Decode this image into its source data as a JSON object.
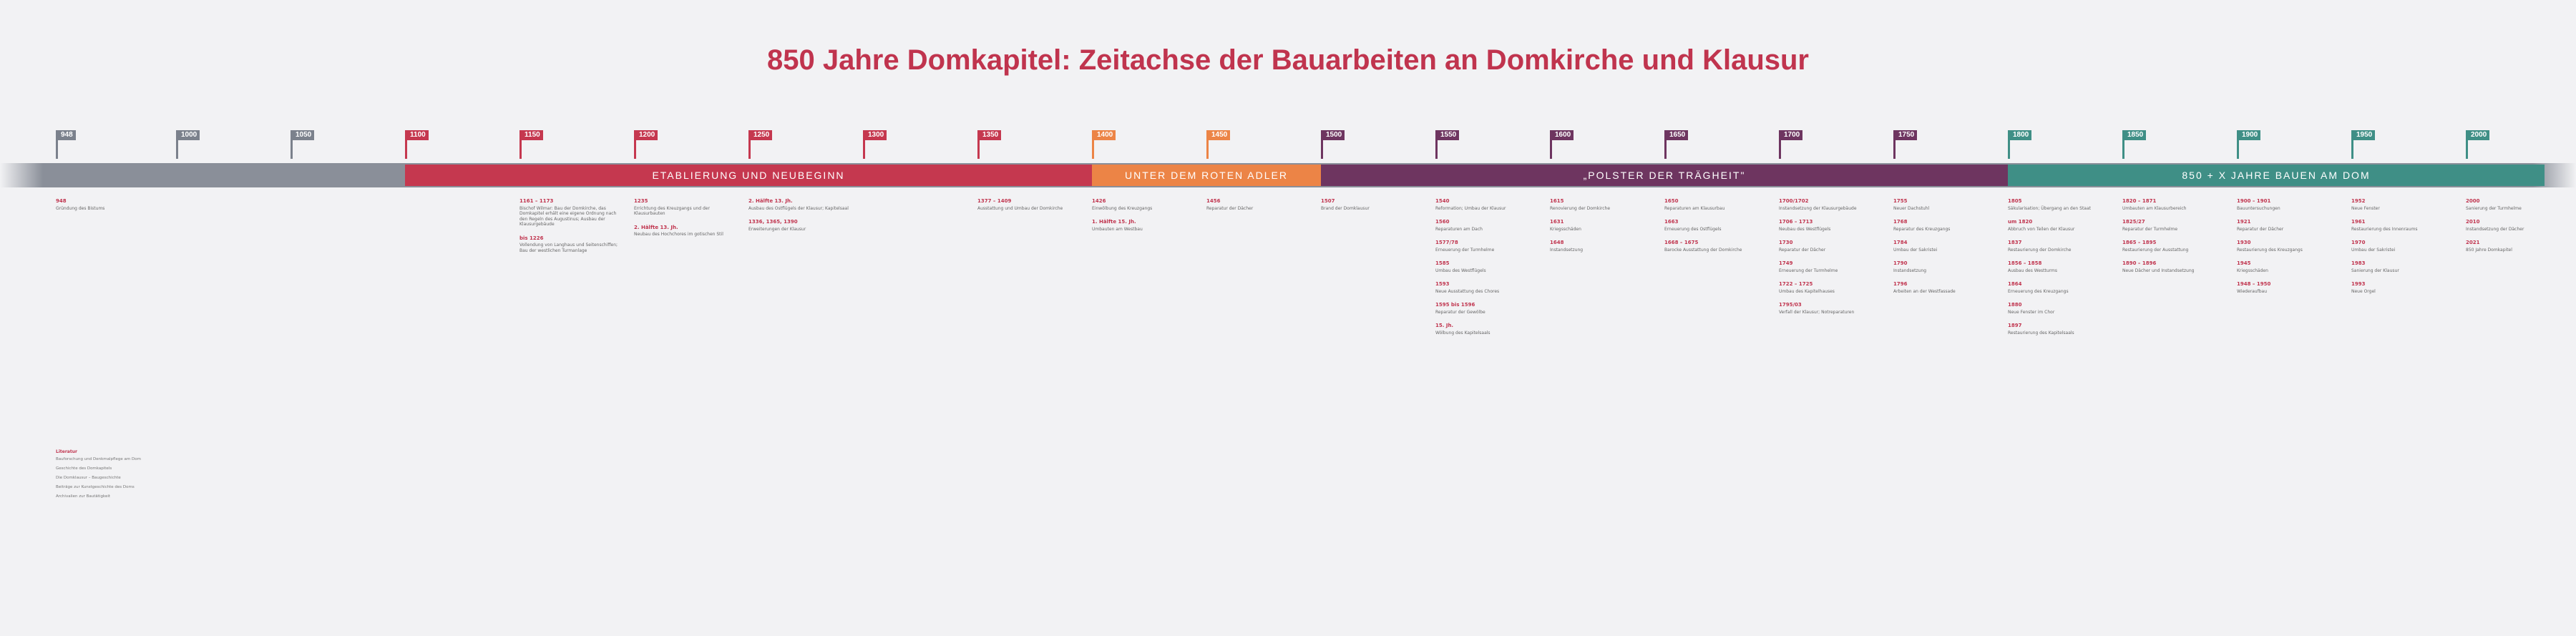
{
  "title": "850 Jahre Domkapitel: Zeitachse der Bauarbeiten an Domkirche und Klausur",
  "years": [
    "948",
    "1000",
    "1050",
    "1100",
    "1150",
    "1200",
    "1250",
    "1300",
    "1350",
    "1400",
    "1450",
    "1500",
    "1550",
    "1600",
    "1650",
    "1700",
    "1750",
    "1800",
    "1850",
    "1900",
    "1950",
    "2000"
  ],
  "colors": {
    "grey": "#7b818c",
    "red": "#c5384f",
    "orange": "#ec8446",
    "purple": "#6e3560",
    "teal": "#3f8f86"
  },
  "epochs": [
    {
      "label": "ETABLIERUNG UND NEUBEGINN",
      "color": "#c5384f"
    },
    {
      "label": "UNTER DEM ROTEN ADLER",
      "color": "#ec8446"
    },
    {
      "label": "„POLSTER DER TRÄGHEIT\"",
      "color": "#6e3560"
    },
    {
      "label": "850 + X JAHRE BAUEN AM DOM",
      "color": "#3f8f86"
    }
  ],
  "entries": [
    [
      {
        "date": "948",
        "text": "Gründung des Bistums"
      }
    ],
    [
      {
        "date": "1161 – 1173",
        "text": "Bischof Wilmar: Bau der Domkirche, das Domkapitel erhält eine eigene Ordnung nach den Regeln des Augustinus; Ausbau der Klausurgebäude"
      },
      {
        "date": "bis 1226",
        "text": "Vollendung von Langhaus und Seitenschiffen; Bau der westlichen Turmanlage"
      }
    ],
    [
      {
        "date": "1235",
        "text": "Errichtung des Kreuzgangs und der Klausurbauten"
      },
      {
        "date": "2. Hälfte 13. Jh.",
        "text": "Neubau des Hochchores im gotischen Stil"
      }
    ],
    [
      {
        "date": "2. Hälfte 13. Jh.",
        "text": "Ausbau des Ostflügels der Klausur; Kapitelsaal"
      },
      {
        "date": "1336, 1365, 1390",
        "text": "Erweiterungen der Klausur"
      }
    ],
    [
      {
        "date": "1377 – 1409",
        "text": "Ausstattung und Umbau der Domkirche"
      }
    ],
    [
      {
        "date": "1426",
        "text": "Einwölbung des Kreuzgangs"
      },
      {
        "date": "1. Hälfte 15. Jh.",
        "text": "Umbauten am Westbau"
      }
    ],
    [
      {
        "date": "1456",
        "text": "Reparatur der Dächer"
      }
    ],
    [
      {
        "date": "1507",
        "text": "Brand der Domklausur"
      }
    ],
    [
      {
        "date": "1540",
        "text": "Reformation; Umbau der Klausur"
      },
      {
        "date": "1560",
        "text": "Reparaturen am Dach"
      },
      {
        "date": "1577/78",
        "text": "Erneuerung der Turmhelme"
      },
      {
        "date": "1585",
        "text": "Umbau des Westflügels"
      },
      {
        "date": "1593",
        "text": "Neue Ausstattung des Chores"
      },
      {
        "date": "1595 bis 1596",
        "text": "Reparatur der Gewölbe"
      },
      {
        "date": "15. Jh.",
        "text": "Wölbung des Kapitelsaals"
      }
    ],
    [
      {
        "date": "1615",
        "text": "Renovierung der Domkirche"
      },
      {
        "date": "1631",
        "text": "Kriegsschäden"
      },
      {
        "date": "1648",
        "text": "Instandsetzung"
      }
    ],
    [
      {
        "date": "1650",
        "text": "Reparaturen am Klausurbau"
      },
      {
        "date": "1663",
        "text": "Erneuerung des Ostflügels"
      },
      {
        "date": "1668 – 1675",
        "text": "Barocke Ausstattung der Domkirche"
      }
    ],
    [
      {
        "date": "1700/1702",
        "text": "Instandsetzung der Klausurgebäude"
      },
      {
        "date": "1706 – 1713",
        "text": "Neubau des Westflügels"
      },
      {
        "date": "1730",
        "text": "Reparatur der Dächer"
      },
      {
        "date": "1749",
        "text": "Erneuerung der Turmhelme"
      },
      {
        "date": "1722 – 1725",
        "text": "Umbau des Kapitelhauses"
      },
      {
        "date": "1795/03",
        "text": "Verfall der Klausur; Notreparaturen"
      }
    ],
    [
      {
        "date": "1755",
        "text": "Neuer Dachstuhl"
      },
      {
        "date": "1768",
        "text": "Reparatur des Kreuzgangs"
      },
      {
        "date": "1784",
        "text": "Umbau der Sakristei"
      },
      {
        "date": "1790",
        "text": "Instandsetzung"
      },
      {
        "date": "1796",
        "text": "Arbeiten an der Westfassade"
      }
    ],
    [
      {
        "date": "1805",
        "text": "Säkularisation; Übergang an den Staat"
      },
      {
        "date": "um 1820",
        "text": "Abbruch von Teilen der Klausur"
      },
      {
        "date": "1837",
        "text": "Restaurierung der Domkirche"
      },
      {
        "date": "1856 – 1858",
        "text": "Ausbau des Westturms"
      },
      {
        "date": "1864",
        "text": "Erneuerung des Kreuzgangs"
      },
      {
        "date": "1880",
        "text": "Neue Fenster im Chor"
      },
      {
        "date": "1897",
        "text": "Restaurierung des Kapitelsaals"
      }
    ],
    [
      {
        "date": "1820 – 1871",
        "text": "Umbauten am Klausurbereich"
      },
      {
        "date": "1825/27",
        "text": "Reparatur der Turmhelme"
      },
      {
        "date": "1865 – 1895",
        "text": "Restaurierung der Ausstattung"
      },
      {
        "date": "1890 – 1896",
        "text": "Neue Dächer und Instandsetzung"
      }
    ],
    [
      {
        "date": "1900 – 1901",
        "text": "Bauuntersuchungen"
      },
      {
        "date": "1921",
        "text": "Reparatur der Dächer"
      },
      {
        "date": "1930",
        "text": "Restaurierung des Kreuzgangs"
      },
      {
        "date": "1945",
        "text": "Kriegsschäden"
      },
      {
        "date": "1948 – 1950",
        "text": "Wiederaufbau"
      }
    ],
    [
      {
        "date": "1952",
        "text": "Neue Fenster"
      },
      {
        "date": "1961",
        "text": "Restaurierung des Innenraums"
      },
      {
        "date": "1970",
        "text": "Umbau der Sakristei"
      },
      {
        "date": "1983",
        "text": "Sanierung der Klausur"
      },
      {
        "date": "1993",
        "text": "Neue Orgel"
      }
    ],
    [
      {
        "date": "2000",
        "text": "Sanierung der Turmhelme"
      },
      {
        "date": "2010",
        "text": "Instandsetzung der Dächer"
      },
      {
        "date": "2021",
        "text": "850 Jahre Domkapitel"
      }
    ]
  ],
  "literature": {
    "heading": "Literatur",
    "items": [
      "Bauforschung und Denkmalpflege am Dom",
      "Geschichte des Domkapitels",
      "Die Domklausur – Baugeschichte",
      "Beiträge zur Kunstgeschichte des Doms",
      "Archivalien zur Bautätigkeit"
    ]
  }
}
